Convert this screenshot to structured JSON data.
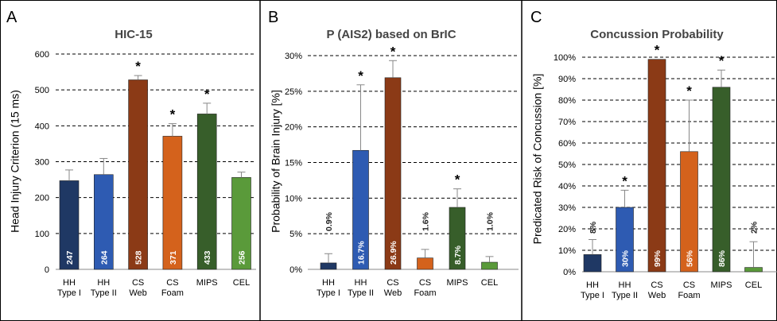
{
  "chart_data": [
    {
      "type": "bar",
      "panel_letter": "A",
      "title": "HIC-15",
      "ylabel": "Head Injury Criterion (15 ms)",
      "ylim": [
        0,
        600
      ],
      "yticks": [
        0,
        100,
        200,
        300,
        400,
        500,
        600
      ],
      "ytick_labels": [
        "0",
        "100",
        "200",
        "300",
        "400",
        "500",
        "600"
      ],
      "grid": true,
      "categories": [
        [
          "HH",
          "Type I"
        ],
        [
          "HH",
          "Type II"
        ],
        [
          "CS",
          "Web"
        ],
        [
          "CS",
          "Foam"
        ],
        [
          "MIPS",
          ""
        ],
        [
          "CEL",
          ""
        ]
      ],
      "values": [
        247,
        264,
        528,
        371,
        433,
        256
      ],
      "error": [
        30,
        45,
        12,
        35,
        30,
        15
      ],
      "value_labels": [
        "247",
        "264",
        "528",
        "371",
        "433",
        "256"
      ],
      "significant": [
        false,
        false,
        true,
        true,
        true,
        false
      ],
      "colors": [
        "#1f3864",
        "#2e5bb2",
        "#8b3a16",
        "#d4621c",
        "#375e2a",
        "#5a9a3a"
      ]
    },
    {
      "type": "bar",
      "panel_letter": "B",
      "title": "P (AIS2) based on BrIC",
      "ylabel": "Probability of Brain Injury [%]",
      "ylim": [
        0,
        30
      ],
      "yticks": [
        0,
        5,
        10,
        15,
        20,
        25,
        30
      ],
      "ytick_labels": [
        "0%",
        "5%",
        "10%",
        "15%",
        "20%",
        "25%",
        "30%"
      ],
      "grid": true,
      "categories": [
        [
          "HH",
          "Type I"
        ],
        [
          "HH",
          "Type II"
        ],
        [
          "CS",
          "Web"
        ],
        [
          "CS",
          "Foam"
        ],
        [
          "MIPS",
          ""
        ],
        [
          "CEL",
          ""
        ]
      ],
      "values": [
        0.9,
        16.7,
        26.9,
        1.6,
        8.7,
        1.0
      ],
      "error": [
        1.3,
        9.2,
        2.4,
        1.2,
        2.6,
        0.8
      ],
      "value_labels": [
        "0.9%",
        "16.7%",
        "26.9%",
        "1.6%",
        "8.7%",
        "1.0%"
      ],
      "significant": [
        false,
        true,
        true,
        false,
        true,
        false
      ],
      "colors": [
        "#1f3864",
        "#2e5bb2",
        "#8b3a16",
        "#d4621c",
        "#375e2a",
        "#5a9a3a"
      ]
    },
    {
      "type": "bar",
      "panel_letter": "C",
      "title": "Concussion Probability",
      "ylabel": "Predicated Risk of Concussion [%]",
      "ylim": [
        0,
        100
      ],
      "yticks": [
        0,
        10,
        20,
        30,
        40,
        50,
        60,
        70,
        80,
        90,
        100
      ],
      "ytick_labels": [
        "0%",
        "10%",
        "20%",
        "30%",
        "40%",
        "50%",
        "60%",
        "70%",
        "80%",
        "90%",
        "100%"
      ],
      "grid": true,
      "categories": [
        [
          "HH",
          "Type I"
        ],
        [
          "HH",
          "Type II"
        ],
        [
          "CS",
          "Web"
        ],
        [
          "CS",
          "Foam"
        ],
        [
          "MIPS",
          ""
        ],
        [
          "CEL",
          ""
        ]
      ],
      "values": [
        8,
        30,
        99,
        56,
        86,
        2
      ],
      "error": [
        7,
        8,
        0,
        24,
        8,
        12
      ],
      "value_labels": [
        "8%",
        "30%",
        "99%",
        "56%",
        "86%",
        "2%"
      ],
      "significant": [
        false,
        true,
        true,
        true,
        true,
        false
      ],
      "colors": [
        "#1f3864",
        "#2e5bb2",
        "#8b3a16",
        "#d4621c",
        "#375e2a",
        "#5a9a3a"
      ]
    }
  ]
}
